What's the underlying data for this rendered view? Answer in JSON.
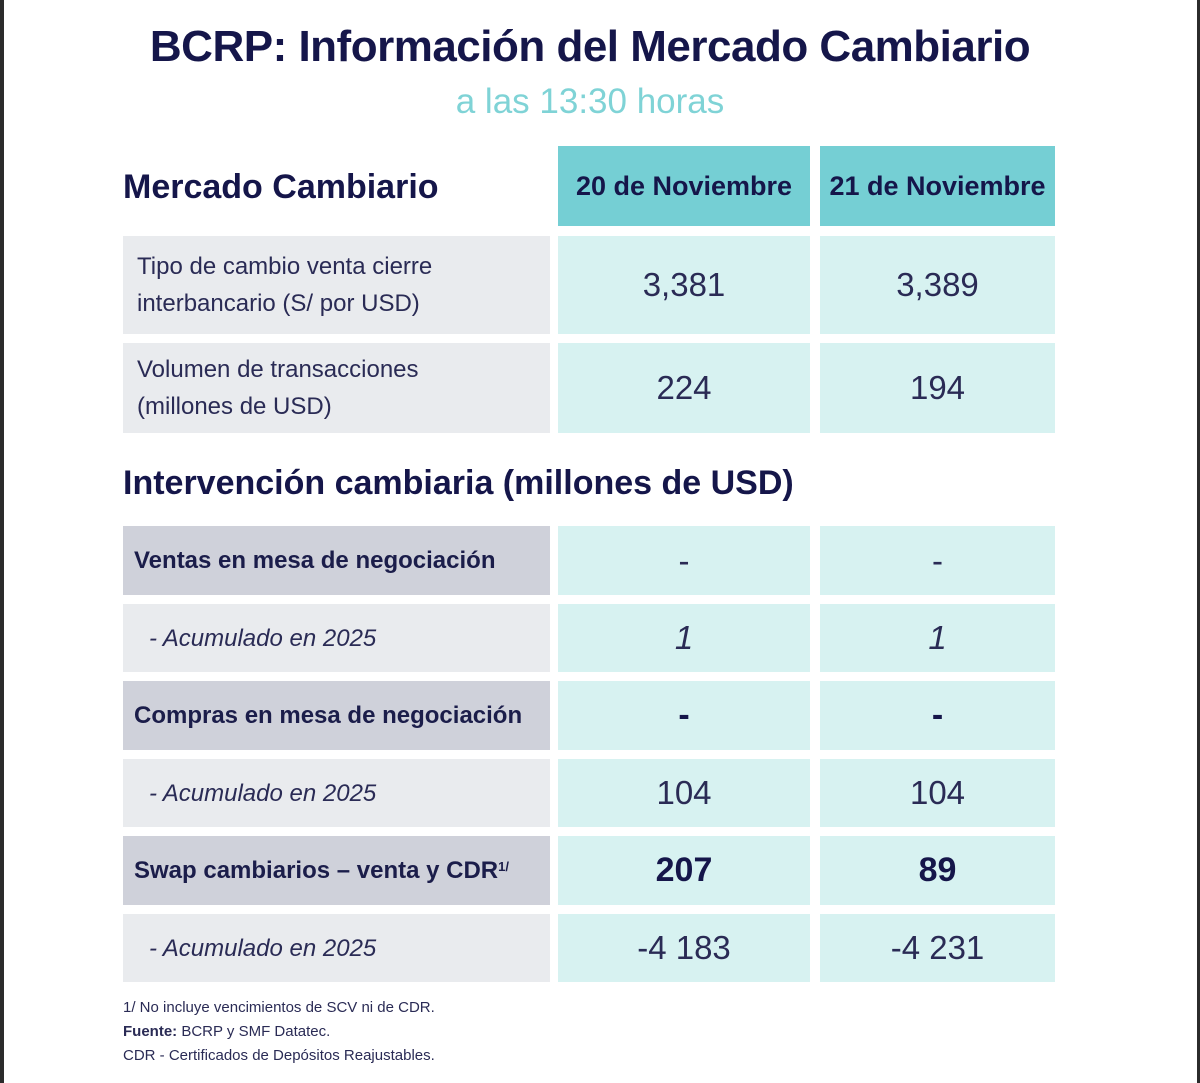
{
  "title": "BCRP: Información del Mercado Cambiario",
  "subtitle": "a las 13:30 horas",
  "mercado": {
    "heading": "Mercado Cambiario",
    "dates": [
      "20 de Noviembre",
      "21 de Noviembre"
    ],
    "rows": [
      {
        "label_line1": "Tipo de cambio venta cierre",
        "label_line2": "interbancario (S/ por USD)",
        "v1": "3,381",
        "v2": "3,389"
      },
      {
        "label_line1": "Volumen de transacciones",
        "label_line2": "(millones de USD)",
        "v1": "224",
        "v2": "194"
      }
    ]
  },
  "intervencion": {
    "heading": "Intervención cambiaria (millones de USD)",
    "rows": [
      {
        "label": "Ventas en mesa de negociación",
        "v1": "-",
        "v2": "-"
      },
      {
        "label": "-  Acumulado en 2025",
        "v1": "1",
        "v2": "1"
      },
      {
        "label": "Compras en mesa de negociación",
        "v1": "-",
        "v2": "-"
      },
      {
        "label": "-  Acumulado en 2025",
        "v1": "104",
        "v2": "104"
      },
      {
        "label": "Swap cambiarios – venta y CDR",
        "sup": "1/",
        "v1": "207",
        "v2": "89"
      },
      {
        "label": "-  Acumulado en 2025",
        "v1": "-4 183",
        "v2": "-4 231"
      }
    ]
  },
  "footnotes": {
    "note1": "1/ No incluye vencimientos de SCV ni de CDR.",
    "fuente_label": "Fuente:",
    "fuente_text": " BCRP y SMF Datatec.",
    "cdr": "CDR - Certificados de Depósitos Reajustables."
  }
}
